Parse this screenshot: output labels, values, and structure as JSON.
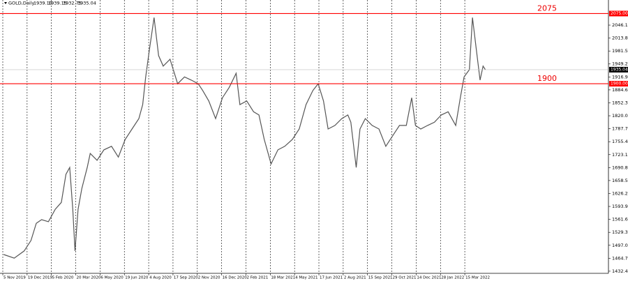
{
  "chart_data": {
    "type": "line",
    "symbol": "GOLD,Daily",
    "ohlc": [
      {
        "value": 1939.1,
        "label": "1939.10"
      },
      {
        "value": 1939.15,
        "label": "1939.15"
      },
      {
        "value": 1932.75,
        "label": "1932.75"
      },
      {
        "value": 1935.04,
        "label": "1935.04"
      }
    ],
    "x": [
      2,
      16,
      29,
      38,
      45,
      52,
      61,
      70,
      78,
      84,
      89,
      93,
      96,
      100,
      105,
      112,
      116,
      125,
      134,
      144,
      153,
      162,
      171,
      180,
      185,
      189,
      194,
      200,
      206,
      212,
      221,
      231,
      240,
      249,
      258,
      264,
      272,
      281,
      290,
      299,
      308,
      313,
      322,
      331,
      338,
      345,
      354,
      363,
      372,
      382,
      391,
      400,
      409,
      416,
      423,
      429,
      438,
      447,
      455,
      459,
      466,
      471,
      478,
      487,
      496,
      505,
      514,
      523,
      532,
      539,
      544,
      551,
      560,
      569,
      578,
      587,
      597,
      603,
      608,
      615,
      619,
      624,
      629,
      633,
      636
    ],
    "series": [
      {
        "name": "GOLD",
        "color": "#555555",
        "values": [
          1474,
          1465,
          1483,
          1509,
          1552,
          1561,
          1556,
          1587,
          1604,
          1674,
          1691,
          1587,
          1483,
          1587,
          1639,
          1691,
          1726,
          1709,
          1735,
          1744,
          1717,
          1761,
          1787,
          1813,
          1848,
          1917,
          1987,
          2065,
          1970,
          1944,
          1961,
          1900,
          1917,
          1909,
          1900,
          1883,
          1857,
          1813,
          1865,
          1891,
          1926,
          1848,
          1857,
          1830,
          1822,
          1761,
          1700,
          1735,
          1744,
          1761,
          1787,
          1848,
          1883,
          1900,
          1857,
          1787,
          1796,
          1813,
          1822,
          1804,
          1691,
          1787,
          1813,
          1796,
          1787,
          1744,
          1770,
          1796,
          1796,
          1865,
          1796,
          1787,
          1796,
          1804,
          1822,
          1830,
          1796,
          1865,
          1917,
          1935,
          2065,
          1987,
          1909,
          1944,
          1935
        ]
      }
    ],
    "xlim": [
      0,
      798
    ],
    "xticks": [
      {
        "value": 0,
        "label": "5 Nov 2019"
      },
      {
        "value": 32,
        "label": "19 Dec 2019"
      },
      {
        "value": 64,
        "label": "5 Feb 2020"
      },
      {
        "value": 96,
        "label": "20 Mar 2020"
      },
      {
        "value": 128,
        "label": "6 May 2020"
      },
      {
        "value": 160,
        "label": "19 Jun 2020"
      },
      {
        "value": 192,
        "label": "4 Aug 2020"
      },
      {
        "value": 224,
        "label": "17 Sep 2020"
      },
      {
        "value": 256,
        "label": "2 Nov 2020"
      },
      {
        "value": 288,
        "label": "16 Dec 2020"
      },
      {
        "value": 320,
        "label": "2 Feb 2021"
      },
      {
        "value": 352,
        "label": "18 Mar 2021"
      },
      {
        "value": 384,
        "label": "4 May 2021"
      },
      {
        "value": 416,
        "label": "17 Jun 2021"
      },
      {
        "value": 448,
        "label": "2 Aug 2021"
      },
      {
        "value": 480,
        "label": "15 Sep 2021"
      },
      {
        "value": 512,
        "label": "29 Oct 2021"
      },
      {
        "value": 544,
        "label": "14 Dec 2021"
      },
      {
        "value": 576,
        "label": "28 Jan 2022"
      },
      {
        "value": 608,
        "label": "15 Mar 2022"
      }
    ],
    "ylim": [
      1427.1,
      2108.8
    ],
    "yticks": [
      2046.15,
      2013.85,
      1981.55,
      1949.25,
      1916.95,
      1884.65,
      1852.35,
      1820.05,
      1787.75,
      1755.45,
      1723.15,
      1690.85,
      1658.55,
      1626.25,
      1593.95,
      1561.65,
      1529.35,
      1497.05,
      1464.75,
      1432.45
    ],
    "grid": true,
    "levels": [
      {
        "value": 2075,
        "label": "2075",
        "box_label": "2075.00",
        "color": "#ff0000"
      },
      {
        "value": 1900,
        "label": "1900",
        "box_label": "1900.00",
        "color": "#ff0000"
      }
    ],
    "last_price": 1935.04
  }
}
